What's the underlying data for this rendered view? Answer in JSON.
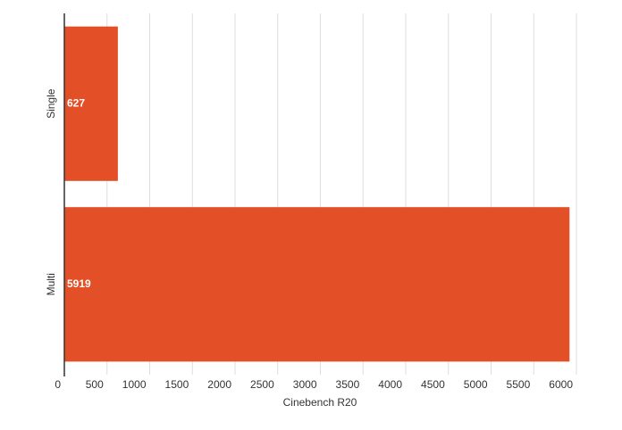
{
  "chart_data": {
    "type": "bar",
    "orientation": "horizontal",
    "categories": [
      "Single",
      "Multi"
    ],
    "values": [
      627,
      5919
    ],
    "color": "#e34f26",
    "x_label": "Cinebench R20",
    "xlim": [
      0,
      6000
    ],
    "xticks": [
      0,
      500,
      1000,
      1500,
      2000,
      2500,
      3000,
      3500,
      4000,
      4500,
      5000,
      5500,
      6000
    ],
    "grid": true
  }
}
